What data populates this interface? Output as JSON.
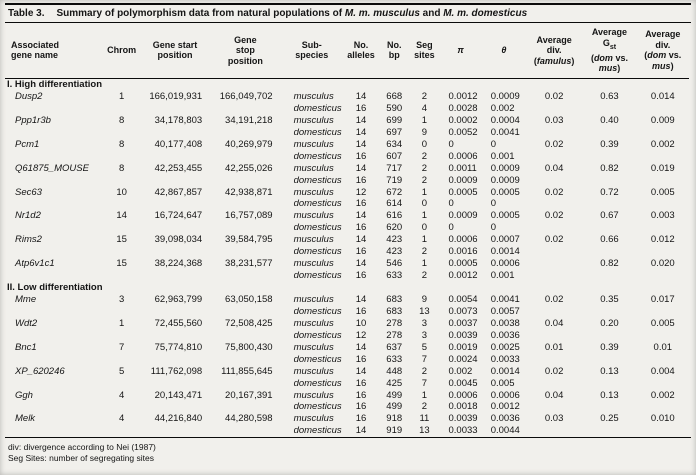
{
  "title": {
    "label": "Table 3.",
    "segments": [
      {
        "t": "Summary of polymorphism data from natural populations of "
      },
      {
        "t": "M. m. musculus",
        "i": true
      },
      {
        "t": " and "
      },
      {
        "t": "M. m. domesticus",
        "i": true
      }
    ]
  },
  "columns": [
    {
      "id": "gene",
      "align": "left",
      "lines": [
        [
          {
            "t": "Associated"
          }
        ],
        [
          {
            "t": "gene name"
          }
        ]
      ]
    },
    {
      "id": "chrom",
      "align": "center",
      "lines": [
        [
          {
            "t": "Chrom"
          }
        ]
      ]
    },
    {
      "id": "start",
      "align": "center",
      "lines": [
        [
          {
            "t": "Gene start"
          }
        ],
        [
          {
            "t": "position"
          }
        ]
      ]
    },
    {
      "id": "stop",
      "align": "center",
      "lines": [
        [
          {
            "t": "Gene"
          }
        ],
        [
          {
            "t": "stop"
          }
        ],
        [
          {
            "t": "position"
          }
        ]
      ]
    },
    {
      "id": "subspecies",
      "align": "center",
      "lines": [
        [
          {
            "t": "Sub-"
          }
        ],
        [
          {
            "t": "species"
          }
        ]
      ]
    },
    {
      "id": "alleles",
      "align": "center",
      "lines": [
        [
          {
            "t": "No."
          }
        ],
        [
          {
            "t": "alleles"
          }
        ]
      ]
    },
    {
      "id": "bp",
      "align": "center",
      "lines": [
        [
          {
            "t": "No."
          }
        ],
        [
          {
            "t": "bp"
          }
        ]
      ]
    },
    {
      "id": "seg",
      "align": "center",
      "lines": [
        [
          {
            "t": "Seg"
          }
        ],
        [
          {
            "t": "sites"
          }
        ]
      ]
    },
    {
      "id": "pi",
      "align": "center",
      "lines": [
        [
          {
            "t": "π",
            "i": true
          }
        ]
      ]
    },
    {
      "id": "theta",
      "align": "center",
      "lines": [
        [
          {
            "t": "θ",
            "i": true
          }
        ]
      ]
    },
    {
      "id": "div-famulus",
      "align": "center",
      "lines": [
        [
          {
            "t": "Average"
          }
        ],
        [
          {
            "t": "div."
          }
        ],
        [
          {
            "t": "("
          },
          {
            "t": "famulus",
            "i": true
          },
          {
            "t": ")"
          }
        ]
      ]
    },
    {
      "id": "gst",
      "align": "center",
      "lines": [
        [
          {
            "t": "Average"
          }
        ],
        [
          {
            "t": "G"
          },
          {
            "t": "st",
            "sub": true
          }
        ],
        [
          {
            "t": "("
          },
          {
            "t": "dom",
            "i": true
          },
          {
            "t": " vs."
          }
        ],
        [
          {
            "t": "mus",
            "i": true
          },
          {
            "t": ")"
          }
        ]
      ]
    },
    {
      "id": "div-dom-mus",
      "align": "center",
      "lines": [
        [
          {
            "t": "Average"
          }
        ],
        [
          {
            "t": "div."
          }
        ],
        [
          {
            "t": "("
          },
          {
            "t": "dom",
            "i": true
          },
          {
            "t": " vs."
          }
        ],
        [
          {
            "t": "mus",
            "i": true
          },
          {
            "t": ")"
          }
        ]
      ]
    }
  ],
  "subspecies_labels": {
    "mus": "musculus",
    "dom": "domesticus"
  },
  "sections": [
    {
      "label": "I. High differentiation",
      "genes": [
        {
          "name": "Dusp2",
          "chrom": "1",
          "start": "166,019,931",
          "stop": "166,049,702",
          "mus": {
            "alleles": "14",
            "bp": "668",
            "seg": "2",
            "pi": "0.0012",
            "theta": "0.0009"
          },
          "dom": {
            "alleles": "16",
            "bp": "590",
            "seg": "4",
            "pi": "0.0028",
            "theta": "0.002"
          },
          "div_famulus": "0.02",
          "gst": "0.63",
          "div_dom_mus": "0.014"
        },
        {
          "name": "Ppp1r3b",
          "chrom": "8",
          "start": "34,178,803",
          "stop": "34,191,218",
          "mus": {
            "alleles": "14",
            "bp": "699",
            "seg": "1",
            "pi": "0.0002",
            "theta": "0.0004"
          },
          "dom": {
            "alleles": "14",
            "bp": "697",
            "seg": "9",
            "pi": "0.0052",
            "theta": "0.0041"
          },
          "div_famulus": "0.03",
          "gst": "0.40",
          "div_dom_mus": "0.009"
        },
        {
          "name": "Pcm1",
          "chrom": "8",
          "start": "40,177,408",
          "stop": "40,269,979",
          "mus": {
            "alleles": "14",
            "bp": "634",
            "seg": "0",
            "pi": "0",
            "theta": "0"
          },
          "dom": {
            "alleles": "16",
            "bp": "607",
            "seg": "2",
            "pi": "0.0006",
            "theta": "0.001"
          },
          "div_famulus": "0.02",
          "gst": "0.39",
          "div_dom_mus": "0.002"
        },
        {
          "name": "Q61875_MOUSE",
          "chrom": "8",
          "start": "42,253,455",
          "stop": "42,255,026",
          "mus": {
            "alleles": "14",
            "bp": "717",
            "seg": "2",
            "pi": "0.0011",
            "theta": "0.0009"
          },
          "dom": {
            "alleles": "16",
            "bp": "719",
            "seg": "2",
            "pi": "0.0009",
            "theta": "0.0009"
          },
          "div_famulus": "0.04",
          "gst": "0.82",
          "div_dom_mus": "0.019"
        },
        {
          "name": "Sec63",
          "chrom": "10",
          "start": "42,867,857",
          "stop": "42,938,871",
          "mus": {
            "alleles": "12",
            "bp": "672",
            "seg": "1",
            "pi": "0.0005",
            "theta": "0.0005"
          },
          "dom": {
            "alleles": "16",
            "bp": "614",
            "seg": "0",
            "pi": "0",
            "theta": "0"
          },
          "div_famulus": "0.02",
          "gst": "0.72",
          "div_dom_mus": "0.005"
        },
        {
          "name": "Nr1d2",
          "chrom": "14",
          "start": "16,724,647",
          "stop": "16,757,089",
          "mus": {
            "alleles": "14",
            "bp": "616",
            "seg": "1",
            "pi": "0.0009",
            "theta": "0.0005"
          },
          "dom": {
            "alleles": "16",
            "bp": "620",
            "seg": "0",
            "pi": "0",
            "theta": "0"
          },
          "div_famulus": "0.02",
          "gst": "0.67",
          "div_dom_mus": "0.003"
        },
        {
          "name": "Rims2",
          "chrom": "15",
          "start": "39,098,034",
          "stop": "39,584,795",
          "mus": {
            "alleles": "14",
            "bp": "423",
            "seg": "1",
            "pi": "0.0006",
            "theta": "0.0007"
          },
          "dom": {
            "alleles": "16",
            "bp": "423",
            "seg": "2",
            "pi": "0.0016",
            "theta": "0.0014"
          },
          "div_famulus": "0.02",
          "gst": "0.66",
          "div_dom_mus": "0.012"
        },
        {
          "name": "Atp6v1c1",
          "chrom": "15",
          "start": "38,224,368",
          "stop": "38,231,577",
          "mus": {
            "alleles": "14",
            "bp": "546",
            "seg": "1",
            "pi": "0.0005",
            "theta": "0.0006"
          },
          "dom": {
            "alleles": "16",
            "bp": "633",
            "seg": "2",
            "pi": "0.0012",
            "theta": "0.001"
          },
          "div_famulus": "",
          "gst": "0.82",
          "div_dom_mus": "0.020"
        }
      ]
    },
    {
      "label": "II. Low differentiation",
      "genes": [
        {
          "name": "Mme",
          "chrom": "3",
          "start": "62,963,799",
          "stop": "63,050,158",
          "mus": {
            "alleles": "14",
            "bp": "683",
            "seg": "9",
            "pi": "0.0054",
            "theta": "0.0041"
          },
          "dom": {
            "alleles": "16",
            "bp": "683",
            "seg": "13",
            "pi": "0.0073",
            "theta": "0.0057"
          },
          "div_famulus": "0.02",
          "gst": "0.35",
          "div_dom_mus": "0.017"
        },
        {
          "name": "Wdt2",
          "chrom": "1",
          "start": "72,455,560",
          "stop": "72,508,425",
          "mus": {
            "alleles": "10",
            "bp": "278",
            "seg": "3",
            "pi": "0.0037",
            "theta": "0.0038"
          },
          "dom": {
            "alleles": "12",
            "bp": "278",
            "seg": "3",
            "pi": "0.0039",
            "theta": "0.0036"
          },
          "div_famulus": "0.04",
          "gst": "0.20",
          "div_dom_mus": "0.005"
        },
        {
          "name": "Bnc1",
          "chrom": "7",
          "start": "75,774,810",
          "stop": "75,800,430",
          "mus": {
            "alleles": "14",
            "bp": "637",
            "seg": "5",
            "pi": "0.0019",
            "theta": "0.0025"
          },
          "dom": {
            "alleles": "16",
            "bp": "633",
            "seg": "7",
            "pi": "0.0024",
            "theta": "0.0033"
          },
          "div_famulus": "0.01",
          "gst": "0.39",
          "div_dom_mus": "0.01"
        },
        {
          "name": "XP_620246",
          "chrom": "5",
          "start": "111,762,098",
          "stop": "111,855,645",
          "mus": {
            "alleles": "14",
            "bp": "448",
            "seg": "2",
            "pi": "0.002",
            "theta": "0.0014"
          },
          "dom": {
            "alleles": "16",
            "bp": "425",
            "seg": "7",
            "pi": "0.0045",
            "theta": "0.005"
          },
          "div_famulus": "0.02",
          "gst": "0.13",
          "div_dom_mus": "0.004"
        },
        {
          "name": "Ggh",
          "chrom": "4",
          "start": "20,143,471",
          "stop": "20,167,391",
          "mus": {
            "alleles": "16",
            "bp": "499",
            "seg": "1",
            "pi": "0.0006",
            "theta": "0.0006"
          },
          "dom": {
            "alleles": "16",
            "bp": "499",
            "seg": "2",
            "pi": "0.0018",
            "theta": "0.0012"
          },
          "div_famulus": "0.04",
          "gst": "0.13",
          "div_dom_mus": "0.002"
        },
        {
          "name": "Melk",
          "chrom": "4",
          "start": "44,216,840",
          "stop": "44,280,598",
          "mus": {
            "alleles": "16",
            "bp": "918",
            "seg": "11",
            "pi": "0.0039",
            "theta": "0.0036"
          },
          "dom": {
            "alleles": "14",
            "bp": "919",
            "seg": "13",
            "pi": "0.0033",
            "theta": "0.0044"
          },
          "div_famulus": "0.03",
          "gst": "0.25",
          "div_dom_mus": "0.010"
        }
      ]
    }
  ],
  "footnotes": [
    "div: divergence according to Nei (1987)",
    "Seg Sites: number of segregating sites"
  ]
}
